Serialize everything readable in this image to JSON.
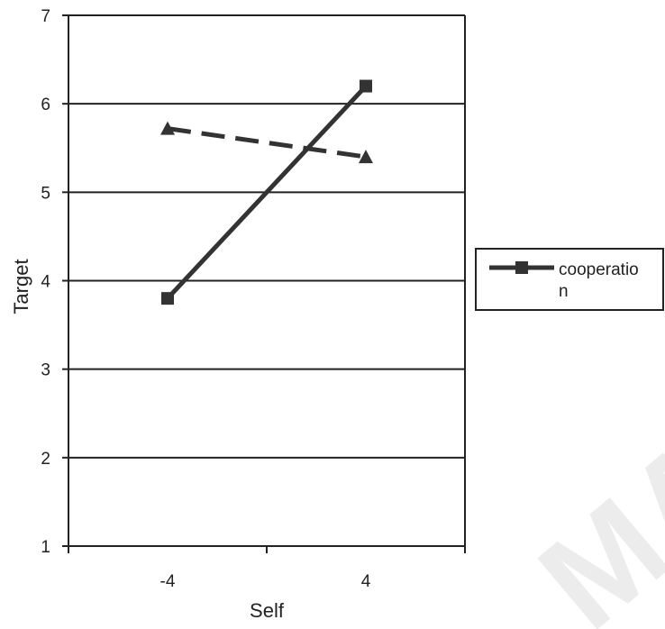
{
  "chart_data": {
    "type": "line",
    "xlabel": "Self",
    "ylabel": "Target",
    "categories": [
      "-4",
      "4"
    ],
    "ylim": [
      1,
      7
    ],
    "yticks": [
      1,
      2,
      3,
      4,
      5,
      6,
      7
    ],
    "grid": "horizontal",
    "legend_position": "right",
    "series": [
      {
        "name": "cooperation",
        "legend_lines": [
          "cooperatio",
          "n"
        ],
        "values": [
          3.8,
          6.2
        ],
        "style": "solid",
        "marker": "square",
        "color": "#333333"
      },
      {
        "name": "",
        "values": [
          5.72,
          5.4
        ],
        "style": "dashed",
        "marker": "triangle",
        "color": "#333333"
      }
    ]
  },
  "watermark": {
    "text": "MA"
  }
}
